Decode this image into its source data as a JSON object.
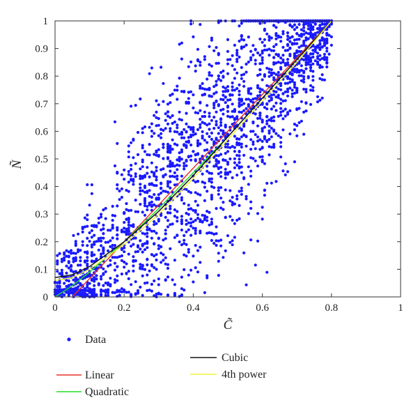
{
  "chart_data": {
    "type": "scatter",
    "title": "",
    "xlabel": "C̃",
    "ylabel": "Ñ",
    "xlim": [
      0,
      1
    ],
    "ylim": [
      0,
      1
    ],
    "xticks": [
      "0",
      "0.2",
      "0.4",
      "0.6",
      "0.8",
      "1"
    ],
    "yticks": [
      "0",
      "0.1",
      "0.2",
      "0.3",
      "0.4",
      "0.5",
      "0.6",
      "0.7",
      "0.8",
      "0.9",
      "1"
    ],
    "grid": false,
    "legend_placement": "below",
    "scatter": {
      "name": "Data",
      "color": "#1a1aff",
      "x_range": [
        0,
        0.8
      ],
      "y_range": [
        0,
        1
      ],
      "approx_count": 2500
    },
    "series": [
      {
        "name": "Linear",
        "color": "#e8302a",
        "x": [
          0.05,
          0.8
        ],
        "y": [
          0.0,
          1.0
        ]
      },
      {
        "name": "Quadratic",
        "color": "#22dd22",
        "x": [
          0.0,
          0.05,
          0.1,
          0.2,
          0.3,
          0.4,
          0.5,
          0.6,
          0.7,
          0.8
        ],
        "y": [
          0.0,
          0.04,
          0.09,
          0.2,
          0.32,
          0.45,
          0.58,
          0.72,
          0.86,
          1.0
        ]
      },
      {
        "name": "Cubic",
        "color": "#111111",
        "x": [
          0.0,
          0.05,
          0.1,
          0.2,
          0.3,
          0.4,
          0.5,
          0.6,
          0.7,
          0.8
        ],
        "y": [
          0.07,
          0.08,
          0.11,
          0.2,
          0.31,
          0.44,
          0.58,
          0.72,
          0.86,
          1.0
        ]
      },
      {
        "name": "4th power",
        "color": "#f2f23a",
        "x": [
          0.0,
          0.05,
          0.1,
          0.2,
          0.3,
          0.4,
          0.5,
          0.6,
          0.7,
          0.8
        ],
        "y": [
          0.06,
          0.07,
          0.1,
          0.19,
          0.3,
          0.43,
          0.57,
          0.71,
          0.85,
          1.0
        ]
      }
    ]
  }
}
